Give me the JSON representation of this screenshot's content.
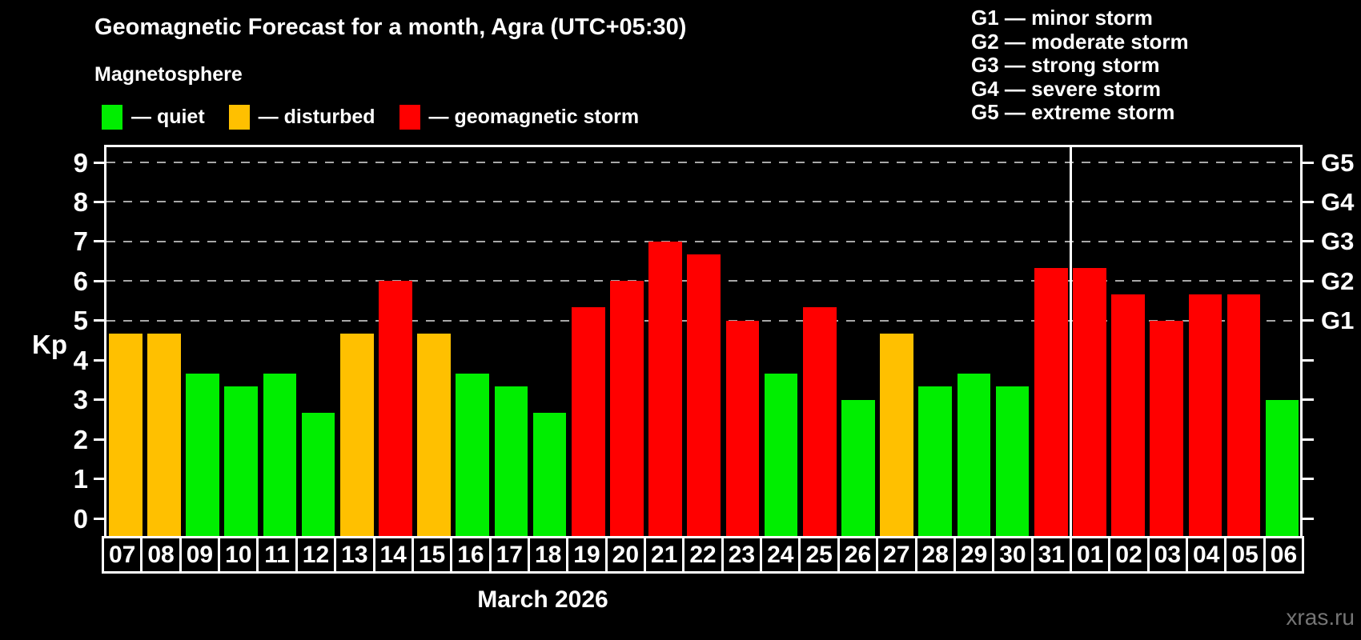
{
  "title": "Geomagnetic Forecast for a month, Agra (UTC+05:30)",
  "subtitle": "Magnetosphere",
  "legend": [
    {
      "label": "— quiet",
      "status": "quiet",
      "color": "#00ee00"
    },
    {
      "label": "— disturbed",
      "status": "disturbed",
      "color": "#ffc000"
    },
    {
      "label": "— geomagnetic storm",
      "status": "storm",
      "color": "#ff0000"
    }
  ],
  "g_legend": [
    "G1 — minor storm",
    "G2 — moderate storm",
    "G3 — strong storm",
    "G4 — severe storm",
    "G5 — extreme storm"
  ],
  "watermark": "xras.ru",
  "chart_data": {
    "type": "bar",
    "title": "Geomagnetic Forecast for a month, Agra (UTC+05:30)",
    "subtitle": "Magnetosphere",
    "ylabel": "Kp",
    "xlabel": "March 2026",
    "ylim": [
      -0.45,
      9.42
    ],
    "yticks": [
      0,
      1,
      2,
      3,
      4,
      5,
      6,
      7,
      8,
      9
    ],
    "gridlines_at": [
      5,
      6,
      7,
      8,
      9
    ],
    "grid": "dashed-horizontal",
    "right_axis_labels": [
      {
        "text": "G1",
        "value": 5
      },
      {
        "text": "G2",
        "value": 6
      },
      {
        "text": "G3",
        "value": 7
      },
      {
        "text": "G4",
        "value": 8
      },
      {
        "text": "G5",
        "value": 9
      }
    ],
    "categories": [
      "07",
      "08",
      "09",
      "10",
      "11",
      "12",
      "13",
      "14",
      "15",
      "16",
      "17",
      "18",
      "19",
      "20",
      "21",
      "22",
      "23",
      "24",
      "25",
      "26",
      "27",
      "28",
      "29",
      "30",
      "31",
      "01",
      "02",
      "03",
      "04",
      "05",
      "06"
    ],
    "values": [
      4.67,
      4.67,
      3.67,
      3.33,
      3.67,
      2.67,
      4.67,
      6,
      4.67,
      3.67,
      3.33,
      2.67,
      5.33,
      6,
      7,
      6.67,
      5,
      3.67,
      5.33,
      3,
      4.67,
      3.33,
      3.67,
      3.33,
      6.33,
      6.33,
      5.67,
      5,
      5.67,
      5.67,
      3
    ],
    "statuses": [
      "disturbed",
      "disturbed",
      "quiet",
      "quiet",
      "quiet",
      "quiet",
      "disturbed",
      "storm",
      "disturbed",
      "quiet",
      "quiet",
      "quiet",
      "storm",
      "storm",
      "storm",
      "storm",
      "storm",
      "quiet",
      "storm",
      "quiet",
      "disturbed",
      "quiet",
      "quiet",
      "quiet",
      "storm",
      "storm",
      "storm",
      "storm",
      "storm",
      "storm",
      "quiet"
    ],
    "month_separator_after_index": 24,
    "colors": {
      "quiet": "#00ee00",
      "disturbed": "#ffc000",
      "storm": "#ff0000"
    },
    "legend_position": "top-left"
  }
}
